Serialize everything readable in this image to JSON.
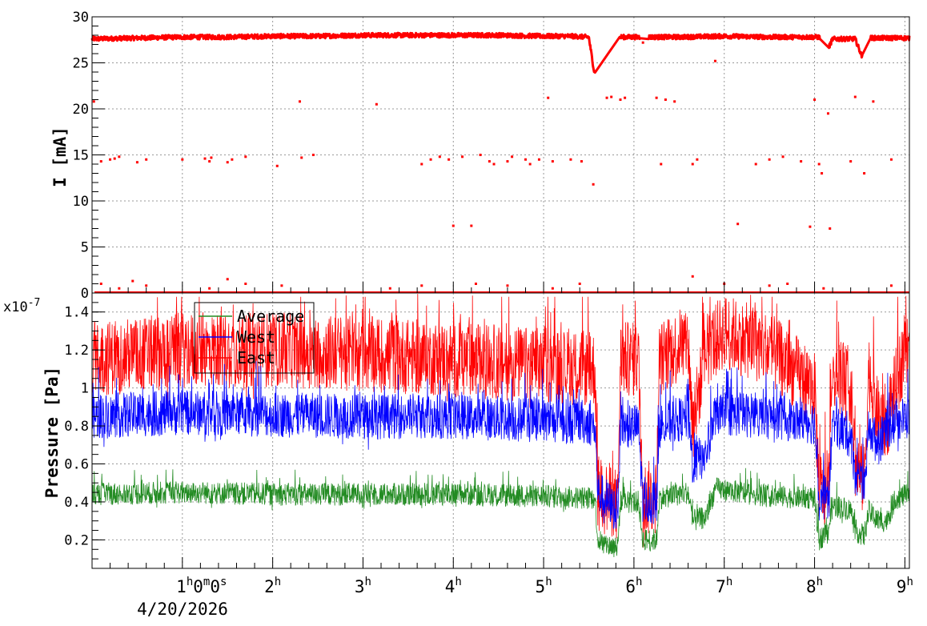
{
  "chart_data": [
    {
      "type": "scatter",
      "ylabel": "I [mA]",
      "ylim": [
        0,
        30
      ],
      "yticks": [
        "0",
        "5",
        "10",
        "15",
        "20",
        "25",
        "30"
      ],
      "xlim_hours": [
        0,
        9.05
      ],
      "grid": true,
      "series": [
        {
          "color": "#ff0000",
          "main_level": [
            [
              0,
              27.6
            ],
            [
              0.5,
              27.7
            ],
            [
              1,
              27.8
            ],
            [
              1.5,
              27.8
            ],
            [
              2,
              27.9
            ],
            [
              2.5,
              27.9
            ],
            [
              3,
              28.0
            ],
            [
              3.5,
              28.0
            ],
            [
              4,
              28.0
            ],
            [
              4.5,
              28.0
            ],
            [
              5,
              27.9
            ],
            [
              5.3,
              27.9
            ],
            [
              5.5,
              27.8
            ],
            [
              5.56,
              24.0
            ],
            [
              5.85,
              27.8
            ],
            [
              6.05,
              27.8
            ],
            [
              6.17,
              27.8
            ],
            [
              6.5,
              27.8
            ],
            [
              7,
              27.9
            ],
            [
              7.5,
              27.8
            ],
            [
              8,
              27.8
            ],
            [
              8.05,
              27.8
            ],
            [
              8.15,
              26.5
            ],
            [
              8.2,
              27.6
            ],
            [
              8.45,
              27.6
            ],
            [
              8.52,
              25.8
            ],
            [
              8.62,
              27.7
            ],
            [
              9.05,
              27.7
            ]
          ],
          "scattered": [
            [
              0.02,
              20.8
            ],
            [
              0.1,
              14.3
            ],
            [
              0.2,
              14.5
            ],
            [
              0.25,
              14.6
            ],
            [
              0.3,
              14.8
            ],
            [
              0.5,
              14.2
            ],
            [
              0.6,
              14.5
            ],
            [
              1,
              14.5
            ],
            [
              1.25,
              14.6
            ],
            [
              1.3,
              14.3
            ],
            [
              1.32,
              14.7
            ],
            [
              1.5,
              14.2
            ],
            [
              1.55,
              14.5
            ],
            [
              1.7,
              14.8
            ],
            [
              2.05,
              13.8
            ],
            [
              2.3,
              20.8
            ],
            [
              2.32,
              14.7
            ],
            [
              2.45,
              15.0
            ],
            [
              3.15,
              20.5
            ],
            [
              3.65,
              14.0
            ],
            [
              3.75,
              14.5
            ],
            [
              3.85,
              14.8
            ],
            [
              3.95,
              14.5
            ],
            [
              4,
              7.3
            ],
            [
              4.1,
              14.8
            ],
            [
              4.2,
              7.3
            ],
            [
              4.3,
              15.0
            ],
            [
              4.4,
              14.3
            ],
            [
              4.45,
              14.0
            ],
            [
              4.6,
              14.3
            ],
            [
              4.65,
              14.8
            ],
            [
              4.8,
              14.5
            ],
            [
              4.85,
              14.0
            ],
            [
              4.95,
              14.5
            ],
            [
              5.05,
              21.2
            ],
            [
              5.1,
              14.3
            ],
            [
              5.3,
              14.5
            ],
            [
              5.42,
              14.3
            ],
            [
              5.55,
              11.8
            ],
            [
              5.7,
              21.2
            ],
            [
              5.75,
              21.3
            ],
            [
              5.85,
              21.0
            ],
            [
              5.9,
              21.2
            ],
            [
              6.1,
              27.2
            ],
            [
              6.25,
              21.2
            ],
            [
              6.3,
              14.0
            ],
            [
              6.35,
              21.0
            ],
            [
              6.45,
              20.8
            ],
            [
              6.65,
              14.0
            ],
            [
              6.7,
              14.5
            ],
            [
              6.9,
              25.2
            ],
            [
              7.15,
              7.5
            ],
            [
              7.35,
              14.0
            ],
            [
              7.5,
              14.5
            ],
            [
              7.65,
              14.8
            ],
            [
              7.85,
              14.3
            ],
            [
              7.95,
              7.2
            ],
            [
              8,
              21.0
            ],
            [
              8.05,
              14.0
            ],
            [
              8.08,
              13.0
            ],
            [
              8.15,
              19.5
            ],
            [
              8.17,
              7.0
            ],
            [
              8.4,
              14.3
            ],
            [
              8.45,
              21.3
            ],
            [
              8.55,
              13.0
            ],
            [
              8.65,
              20.8
            ],
            [
              8.85,
              14.5
            ],
            [
              0.1,
              1.0
            ],
            [
              0.3,
              0.5
            ],
            [
              0.45,
              1.3
            ],
            [
              0.6,
              0.8
            ],
            [
              1.3,
              0.5
            ],
            [
              1.5,
              1.5
            ],
            [
              1.7,
              1.0
            ],
            [
              2.1,
              0.8
            ],
            [
              3.3,
              0.5
            ],
            [
              3.65,
              0.8
            ],
            [
              4.25,
              1.0
            ],
            [
              4.6,
              0.8
            ],
            [
              5.1,
              0.5
            ],
            [
              5.4,
              1.0
            ],
            [
              6.65,
              1.8
            ],
            [
              7.0,
              1.0
            ],
            [
              7.5,
              0.8
            ],
            [
              7.7,
              1.0
            ],
            [
              8.1,
              0.5
            ],
            [
              8.85,
              0.8
            ]
          ]
        }
      ]
    },
    {
      "type": "line",
      "ylabel": "Pressure [Pa]",
      "y_multiplier": "x10",
      "y_exponent": "-7",
      "ylim": [
        0.05,
        1.5
      ],
      "yticks": [
        "0.2",
        "0.4",
        "0.6",
        "0.8",
        "1",
        "1.2",
        "1.4"
      ],
      "xlim_hours": [
        0,
        9.05
      ],
      "xticks": [
        "1",
        "2",
        "3",
        "4",
        "5",
        "6",
        "7",
        "8",
        "9"
      ],
      "xtick_first_suffix": "0m0s",
      "x_date": "4/20/2026",
      "grid": true,
      "legend": [
        "Average",
        "West",
        "East"
      ],
      "series": [
        {
          "name": "Average",
          "color": "#228b22",
          "profile": [
            [
              0,
              0.44
            ],
            [
              1,
              0.45
            ],
            [
              2,
              0.44
            ],
            [
              3,
              0.44
            ],
            [
              4,
              0.44
            ],
            [
              5,
              0.43
            ],
            [
              5.5,
              0.42
            ],
            [
              5.57,
              0.42
            ],
            [
              5.6,
              0.2
            ],
            [
              5.65,
              0.18
            ],
            [
              5.82,
              0.16
            ],
            [
              5.85,
              0.4
            ],
            [
              6.05,
              0.4
            ],
            [
              6.1,
              0.2
            ],
            [
              6.25,
              0.2
            ],
            [
              6.28,
              0.42
            ],
            [
              6.6,
              0.45
            ],
            [
              6.65,
              0.3
            ],
            [
              6.8,
              0.32
            ],
            [
              6.9,
              0.47
            ],
            [
              7.5,
              0.43
            ],
            [
              8,
              0.42
            ],
            [
              8.05,
              0.2
            ],
            [
              8.15,
              0.25
            ],
            [
              8.2,
              0.38
            ],
            [
              8.4,
              0.36
            ],
            [
              8.45,
              0.25
            ],
            [
              8.55,
              0.22
            ],
            [
              8.6,
              0.35
            ],
            [
              8.7,
              0.3
            ],
            [
              8.8,
              0.3
            ],
            [
              8.9,
              0.42
            ],
            [
              9.05,
              0.44
            ]
          ],
          "noise": 0.06
        },
        {
          "name": "West",
          "color": "#0000ff",
          "profile": [
            [
              0,
              0.85
            ],
            [
              1,
              0.87
            ],
            [
              2,
              0.86
            ],
            [
              3,
              0.85
            ],
            [
              4,
              0.85
            ],
            [
              5,
              0.83
            ],
            [
              5.5,
              0.82
            ],
            [
              5.57,
              0.8
            ],
            [
              5.6,
              0.45
            ],
            [
              5.82,
              0.35
            ],
            [
              5.85,
              0.8
            ],
            [
              6.05,
              0.8
            ],
            [
              6.1,
              0.4
            ],
            [
              6.25,
              0.4
            ],
            [
              6.28,
              0.8
            ],
            [
              6.6,
              0.85
            ],
            [
              6.65,
              0.6
            ],
            [
              6.8,
              0.65
            ],
            [
              6.9,
              0.87
            ],
            [
              7.5,
              0.85
            ],
            [
              8,
              0.82
            ],
            [
              8.05,
              0.45
            ],
            [
              8.15,
              0.4
            ],
            [
              8.2,
              0.8
            ],
            [
              8.4,
              0.75
            ],
            [
              8.45,
              0.55
            ],
            [
              8.55,
              0.45
            ],
            [
              8.6,
              0.8
            ],
            [
              8.7,
              0.7
            ],
            [
              8.8,
              0.8
            ],
            [
              9.05,
              0.85
            ]
          ],
          "noise": 0.12
        },
        {
          "name": "East",
          "color": "#ff0000",
          "profile": [
            [
              0,
              1.15
            ],
            [
              1,
              1.2
            ],
            [
              2,
              1.2
            ],
            [
              3,
              1.18
            ],
            [
              4,
              1.15
            ],
            [
              5,
              1.12
            ],
            [
              5.5,
              1.1
            ],
            [
              5.57,
              1.1
            ],
            [
              5.6,
              0.45
            ],
            [
              5.82,
              0.38
            ],
            [
              5.85,
              1.15
            ],
            [
              6.05,
              1.15
            ],
            [
              6.1,
              0.42
            ],
            [
              6.25,
              0.42
            ],
            [
              6.28,
              1.15
            ],
            [
              6.6,
              1.25
            ],
            [
              6.65,
              0.8
            ],
            [
              6.8,
              1.2
            ],
            [
              7.0,
              1.3
            ],
            [
              7.5,
              1.2
            ],
            [
              8,
              1.0
            ],
            [
              8.05,
              0.48
            ],
            [
              8.15,
              0.42
            ],
            [
              8.2,
              1.1
            ],
            [
              8.4,
              1.0
            ],
            [
              8.45,
              0.6
            ],
            [
              8.55,
              0.5
            ],
            [
              8.6,
              1.1
            ],
            [
              8.7,
              0.85
            ],
            [
              8.8,
              0.82
            ],
            [
              9.05,
              1.3
            ]
          ],
          "noise": 0.2
        }
      ]
    }
  ]
}
